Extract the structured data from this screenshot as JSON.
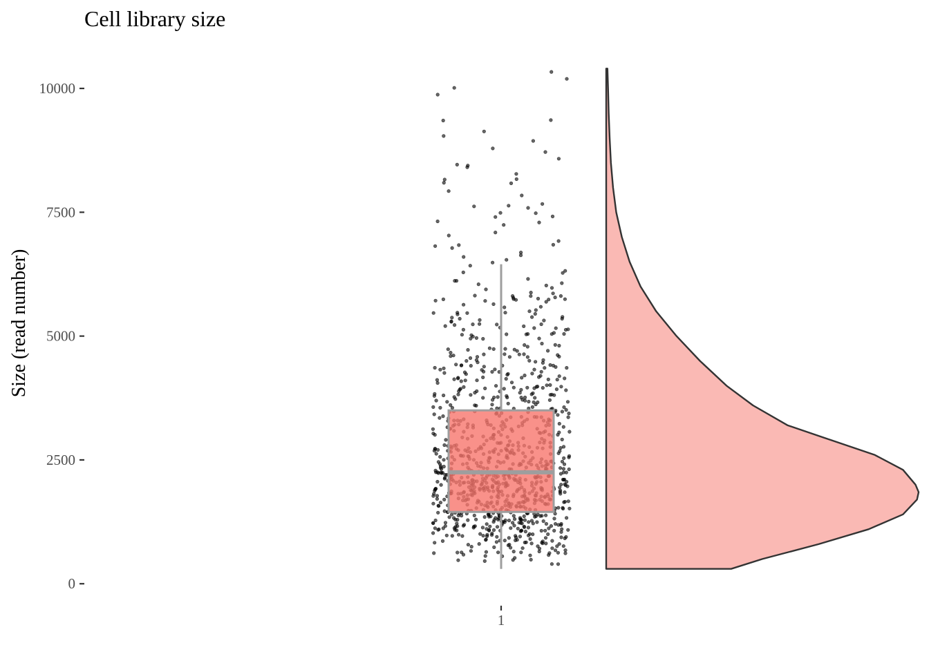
{
  "chart_data": {
    "type": "raincloud",
    "title": "Cell library size",
    "xlabel": "",
    "ylabel": "Size (read number)",
    "categories": [
      "1"
    ],
    "ylim": [
      -150,
      10600
    ],
    "yticks": [
      0,
      2500,
      5000,
      7500,
      10000
    ],
    "xticks": [
      "1"
    ],
    "grid": false,
    "legend": "none",
    "colors": {
      "box_fill": "#f8766d",
      "box_fill_opacity": 0.8,
      "box_outline": "#9e9e9e",
      "violin_fill": "#fab9b4",
      "violin_outline": "#333333",
      "point": "#000000"
    },
    "boxplot": {
      "lower_whisker": 300,
      "q1": 1450,
      "median": 2250,
      "q3": 3500,
      "upper_whisker": 6450
    },
    "density_profile": {
      "y": [
        300,
        500,
        800,
        1100,
        1400,
        1700,
        1850,
        2000,
        2300,
        2600,
        2900,
        3200,
        3600,
        4000,
        4500,
        5000,
        5500,
        6000,
        6500,
        7000,
        7500,
        8000,
        8500,
        9000,
        9500,
        10000,
        10400
      ],
      "relative_density": [
        0.4,
        0.5,
        0.68,
        0.84,
        0.95,
        0.995,
        1.0,
        0.99,
        0.95,
        0.86,
        0.72,
        0.58,
        0.47,
        0.385,
        0.3,
        0.225,
        0.16,
        0.11,
        0.075,
        0.05,
        0.032,
        0.022,
        0.015,
        0.011,
        0.008,
        0.006,
        0.004
      ]
    },
    "n_points": 1000,
    "y_max_point": 10400,
    "y_min_point": 300
  }
}
